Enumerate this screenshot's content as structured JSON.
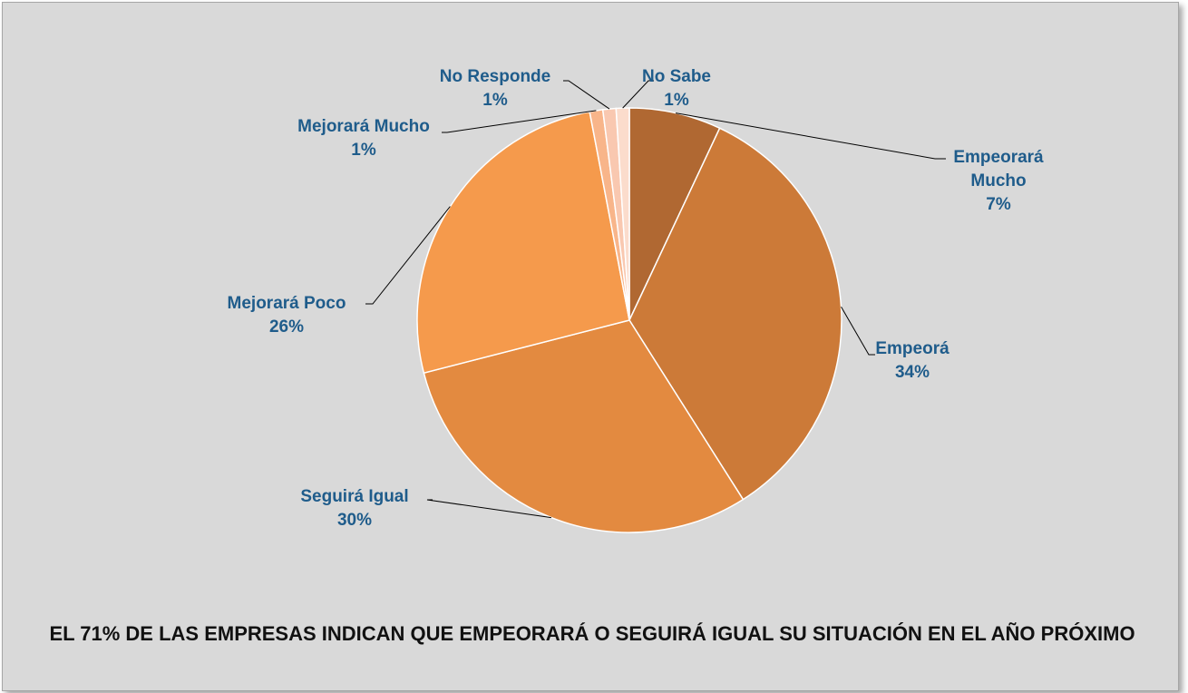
{
  "chart_data": {
    "type": "pie",
    "categories": [
      "Empeorará Mucho",
      "Empeorá",
      "Seguirá Igual",
      "Mejorará Poco",
      "Mejorará Mucho",
      "No Responde",
      "No Sabe"
    ],
    "values": [
      7,
      34,
      30,
      26,
      1,
      1,
      1
    ],
    "value_labels": [
      "7%",
      "34%",
      "30%",
      "26%",
      "1%",
      "1%",
      "1%"
    ],
    "colors": [
      "#b06832",
      "#cc7a38",
      "#e38a40",
      "#f59a4c",
      "#f8b58a",
      "#f9c8b0",
      "#fbdccc"
    ],
    "annotation": "EL 71% DE LAS EMPRESAS INDICAN QUE EMPEORARÁ O SEGUIRÁ IGUAL SU SITUACIÓN EN EL AÑO PRÓXIMO"
  }
}
